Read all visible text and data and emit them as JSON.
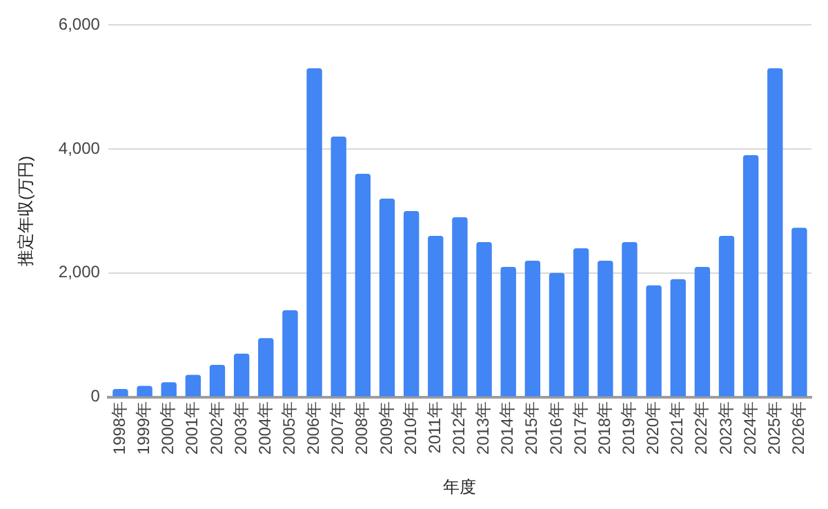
{
  "chart_data": {
    "type": "bar",
    "xlabel": "年度",
    "ylabel": "推定年収(万円)",
    "categories": [
      "1998年",
      "1999年",
      "2000年",
      "2001年",
      "2002年",
      "2003年",
      "2004年",
      "2005年",
      "2006年",
      "2007年",
      "2008年",
      "2009年",
      "2010年",
      "2011年",
      "2012年",
      "2013年",
      "2014年",
      "2015年",
      "2016年",
      "2017年",
      "2018年",
      "2019年",
      "2020年",
      "2021年",
      "2022年",
      "2023年",
      "2024年",
      "2025年",
      "2026年"
    ],
    "values": [
      130,
      180,
      240,
      360,
      520,
      700,
      950,
      1400,
      5300,
      4200,
      3600,
      3200,
      3000,
      2600,
      2900,
      2500,
      2100,
      2200,
      2000,
      2400,
      2200,
      2500,
      1800,
      1900,
      2100,
      2600,
      3900,
      5300,
      2730
    ],
    "color": "#4285f4",
    "ylim": [
      0,
      6000
    ],
    "yticks": [
      0,
      {
        "value": 2000,
        "label": "2,000"
      },
      {
        "value": 4000,
        "label": "4,000"
      },
      {
        "value": 6000,
        "label": "6,000"
      }
    ],
    "grid": "y",
    "legend": false
  }
}
